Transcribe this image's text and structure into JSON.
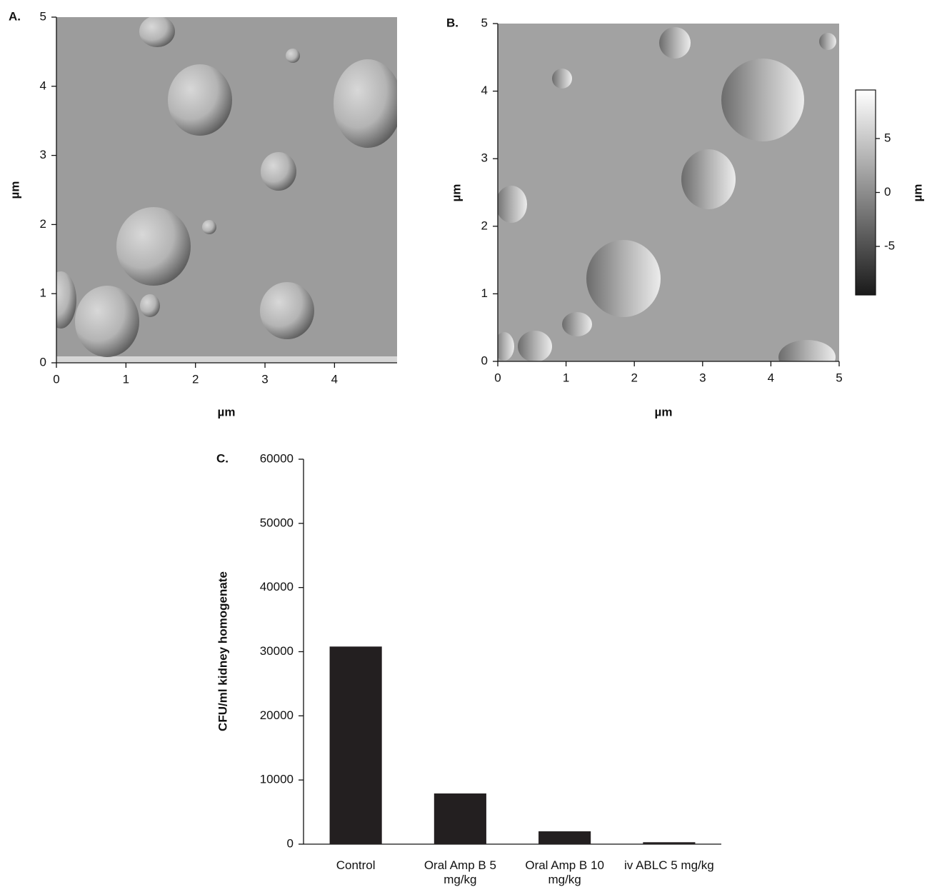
{
  "chart_data": [
    {
      "type": "image",
      "panel_label": "A.",
      "xlabel": "µm",
      "ylabel": "µm",
      "xlim": [
        0,
        4.9
      ],
      "ylim": [
        0,
        5
      ],
      "xticks": [
        0,
        1,
        2,
        3,
        4
      ],
      "yticks": [
        0,
        1,
        2,
        3,
        4,
        5
      ]
    },
    {
      "type": "image",
      "panel_label": "B.",
      "xlabel": "µm",
      "ylabel": "µm",
      "xlim": [
        0,
        5
      ],
      "ylim": [
        0,
        5
      ],
      "xticks": [
        0,
        1,
        2,
        3,
        4,
        5
      ],
      "yticks": [
        0,
        1,
        2,
        3,
        4,
        5
      ],
      "colorbar": {
        "lim": [
          -9.5,
          9.5
        ],
        "ticks": [
          5,
          0,
          -5
        ],
        "label": "µm"
      }
    },
    {
      "type": "bar",
      "panel_label": "C.",
      "ylabel": "CFU/ml kidney homogenate",
      "categories": [
        "Control",
        "Oral Amp B 5 mg/kg",
        "Oral Amp B 10 mg/kg",
        "iv ABLC 5 mg/kg"
      ],
      "values": [
        30800,
        7900,
        2000,
        300
      ],
      "color": "#231f20",
      "ylim": [
        0,
        60000
      ],
      "yticks": [
        0,
        10000,
        20000,
        30000,
        40000,
        50000,
        60000
      ]
    }
  ]
}
